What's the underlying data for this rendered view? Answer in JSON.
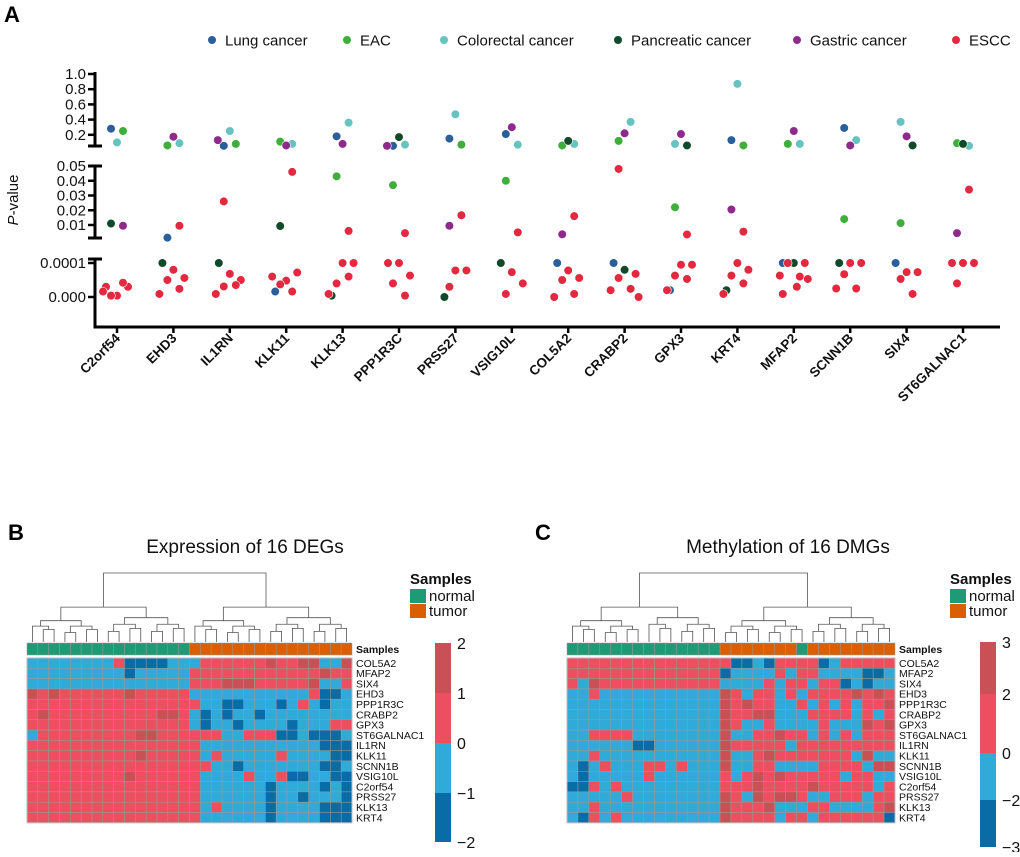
{
  "panels": {
    "a": "A",
    "b": "B",
    "c": "C"
  },
  "chart_data": [
    {
      "type": "scatter",
      "ylabel": "P-value",
      "y_axis": "broken",
      "y_segments": [
        {
          "range": [
            0.05,
            1.0
          ],
          "ticks": [
            "1.0",
            "0.8",
            "0.6",
            "0.4",
            "0.2"
          ],
          "tick_values": [
            1.0,
            0.8,
            0.6,
            0.4,
            0.2
          ]
        },
        {
          "range": [
            0.001,
            0.05
          ],
          "ticks": [
            "0.05",
            "0.04",
            "0.03",
            "0.02",
            "0.01"
          ],
          "tick_values": [
            0.05,
            0.04,
            0.03,
            0.02,
            0.01
          ]
        },
        {
          "range": [
            -9e-05,
            0.0001
          ],
          "ticks": [
            "0.0001",
            "0.000"
          ],
          "tick_values": [
            0.0001,
            0.0
          ]
        }
      ],
      "legend_placement": "top",
      "categories": [
        "C2orf54",
        "EHD3",
        "IL1RN",
        "KLK11",
        "KLK13",
        "PPP1R3C",
        "PRSS27",
        "VSIG10L",
        "COL5A2",
        "CRABP2",
        "GPX3",
        "KRT4",
        "MFAP2",
        "SCNN1B",
        "SIX4",
        "ST6GALNAC1"
      ],
      "series": [
        {
          "name": "Lung cancer",
          "color": "#2b5f9c",
          "values": [
            0.28,
            0.0014,
            0.055,
            1.6e-05,
            0.18,
            0.055,
            0.15,
            0.21,
            0.0001,
            0.0001,
            2e-05,
            0.13,
            0.0001,
            0.29,
            0.0001,
            null
          ]
        },
        {
          "name": "EAC",
          "color": "#3fae3a",
          "values": [
            0.25,
            0.06,
            0.08,
            0.11,
            0.043,
            0.037,
            0.07,
            0.04,
            0.06,
            0.12,
            0.022,
            0.06,
            0.08,
            0.014,
            0.0113,
            0.09
          ]
        },
        {
          "name": "Colorectal cancer",
          "color": "#66c3c0",
          "values": [
            0.1,
            0.09,
            0.25,
            0.08,
            0.36,
            0.07,
            0.47,
            0.07,
            0.08,
            0.37,
            0.08,
            0.87,
            0.08,
            0.13,
            0.37,
            0.055
          ]
        },
        {
          "name": "Pancreatic cancer",
          "color": "#114a2b",
          "values": [
            0.011,
            0.0001,
            0.0001,
            0.0093,
            4e-06,
            0.17,
            0.0,
            0.0001,
            0.12,
            8e-05,
            0.06,
            2e-05,
            0.0001,
            0.0001,
            0.06,
            0.08
          ]
        },
        {
          "name": "Gastric cancer",
          "color": "#8f2a8d",
          "values": [
            0.0095,
            0.175,
            0.13,
            0.06,
            0.08,
            0.055,
            0.0095,
            0.3,
            0.0037,
            0.22,
            0.21,
            0.0205,
            0.25,
            0.06,
            0.18,
            0.0045
          ]
        },
        {
          "name": "ESCC",
          "color": "#e4283f",
          "values": [
            [
              3e-05,
              4e-06,
              3e-05,
              4e-06,
              4.2e-05,
              1.6e-05
            ],
            [
              0.0095,
              8e-05,
              5.6e-05,
              5e-05,
              2.4e-05,
              9e-06
            ],
            [
              0.026,
              6.8e-05,
              5e-05,
              3.1e-05,
              3.5e-05,
              9e-06
            ],
            [
              0.046,
              4.8e-05,
              7.2e-05,
              3.7e-05,
              1.6e-05,
              6e-05
            ],
            [
              0.006,
              0.0001,
              0.0001,
              4e-05,
              6e-05,
              9e-06
            ],
            [
              0.0045,
              0.0001,
              0.0001,
              6.3e-05,
              4e-05,
              4e-06
            ],
            [
              0.0166,
              7.8e-05,
              7.8e-05,
              3e-05
            ],
            [
              0.005,
              7.3e-05,
              4e-05,
              9e-06
            ],
            [
              0.016,
              7.8e-05,
              5.6e-05,
              5e-05,
              9e-06,
              0.0
            ],
            [
              0.048,
              6.8e-05,
              5.6e-05,
              2.4e-05,
              2e-05,
              0.0
            ],
            [
              0.0036,
              9.5e-05,
              9.5e-05,
              6.3e-05,
              5.3e-05,
              2e-05
            ],
            [
              0.0055,
              0.0001,
              8e-05,
              6.3e-05,
              4e-05,
              9e-06
            ],
            [
              0.0001,
              0.0001,
              6e-05,
              6.3e-05,
              5.3e-05,
              3e-05,
              9e-06
            ],
            [
              0.0001,
              0.0001,
              6.7e-05,
              2.5e-05,
              2.5e-05
            ],
            [
              7.3e-05,
              7.3e-05,
              5.3e-05,
              9e-06
            ],
            [
              0.034,
              0.0001,
              0.0001,
              0.0001,
              4e-05
            ]
          ]
        }
      ]
    },
    {
      "type": "heatmap",
      "title": "Expression of 16 DEGs",
      "annotation_label": "Samples",
      "legend_title": "Samples",
      "sample_groups": [
        {
          "name": "normal",
          "code": "N",
          "color": "#1f9a74"
        },
        {
          "name": "tumor",
          "code": "T",
          "color": "#d95f02"
        }
      ],
      "samples": "NNNNNNNNNNNNNNNTTTTTTTTTTTTTTT",
      "highlight_color": "#e0333f",
      "highlighted_genes": [
        "COL5A2",
        "MFAP2",
        "SIX4"
      ],
      "colorbar": {
        "ticks": [
          "2",
          "1",
          "0",
          "−1",
          "−2"
        ],
        "tick_values": [
          2,
          1,
          0,
          -1,
          -2
        ]
      },
      "levels": [
        {
          "code": "H",
          "range": [
            1,
            2
          ],
          "color": "#c95155"
        },
        {
          "code": "R",
          "range": [
            0,
            1
          ],
          "color": "#ee4f60"
        },
        {
          "code": "B",
          "range": [
            -1,
            0
          ],
          "color": "#30aad9"
        },
        {
          "code": "D",
          "range": [
            -2,
            -1
          ],
          "color": "#0a6ca6"
        }
      ],
      "rows": [
        {
          "gene": "COL5A2",
          "cells": "BBBBBBBBRDDDDBBBRRRRRRHRRHHBBH"
        },
        {
          "gene": "MFAP2",
          "cells": "BBBBBBBBBDBBBBBRRRRRRRRRRRRHRR"
        },
        {
          "gene": "SIX4",
          "cells": "BBBBBBBBBBBBBBBRRRHHHRRRRRHBBR"
        },
        {
          "gene": "EHD3",
          "cells": "HRHRRRRRRHRRRRRBBBBBBBBBBBRDDB"
        },
        {
          "gene": "PPP1R3C",
          "cells": "RRRRRRRRRRRRRRRRBBDDBBBDBRBDBB"
        },
        {
          "gene": "CRABP2",
          "cells": "RHRRRRRRRRRRHHRBDBDBBDBBBBBBBB"
        },
        {
          "gene": "GPX3",
          "cells": "RRRRRRRRRRRRRRRBDBBDBBBBDBBBRR"
        },
        {
          "gene": "ST6GALNAC1",
          "cells": "BRRRRRRRRRHHRRRRRRBBRRRDDBDDDB"
        },
        {
          "gene": "IL1RN",
          "cells": "RRRRRRRRRRRRRRRRBBBBBBBBBBBDDD"
        },
        {
          "gene": "KLK11",
          "cells": "RRRRRRRRRRHRRRRRBRBBBBBRBBBBDD"
        },
        {
          "gene": "SCNN1B",
          "cells": "RRRRRRRRRRRRRRRRRBBDBBBBBBBDDB"
        },
        {
          "gene": "VSIG10L",
          "cells": "RRRRRRRRRHRRRRRRBBBBRBBRDDBBDD"
        },
        {
          "gene": "C2orf54",
          "cells": "RRRRRRRRRRRRRRRRBBBBBBDBBBBDBD"
        },
        {
          "gene": "PRSS27",
          "cells": "RRRRRRRRRRRRRRRRBBBBBBDBBDBBBD"
        },
        {
          "gene": "KLK13",
          "cells": "RRRRRRRRRRRRRRRRBRBBBBDBBBBDDD"
        },
        {
          "gene": "KRT4",
          "cells": "RRRRRRRRRRRRRRRRBBBBBBDBBBBDDD"
        }
      ]
    },
    {
      "type": "heatmap",
      "title": "Methylation of 16 DMGs",
      "annotation_label": "Samples",
      "legend_title": "Samples",
      "sample_groups": [
        {
          "name": "normal",
          "code": "N",
          "color": "#1f9a74"
        },
        {
          "name": "tumor",
          "code": "T",
          "color": "#d95f02"
        }
      ],
      "samples": "NNNNNNNNNNNNNNTTTTTTTNTTTTTTTT",
      "highlight_color": "#e0333f",
      "highlighted_genes": [
        "COL5A2",
        "MFAP2",
        "SIX4"
      ],
      "colorbar": {
        "ticks": [
          "3",
          "2",
          "0",
          "−2",
          "−3"
        ],
        "tick_values": [
          3,
          2,
          0,
          -2,
          -3
        ]
      },
      "levels": [
        {
          "code": "H",
          "range": [
            2,
            3
          ],
          "color": "#c95155"
        },
        {
          "code": "R",
          "range": [
            0,
            2
          ],
          "color": "#ee4f60"
        },
        {
          "code": "B",
          "range": [
            -2,
            0
          ],
          "color": "#30aad9"
        },
        {
          "code": "D",
          "range": [
            -3,
            -2
          ],
          "color": "#0a6ca6"
        }
      ],
      "rows": [
        {
          "gene": "COL5A2",
          "cells": "RRRRRRRRRRRRRRRDDBDRRRRDBRRRRR"
        },
        {
          "gene": "MFAP2",
          "cells": "RRRRRRRRRRRRRRDBBBBRBRRBBBBDDB"
        },
        {
          "gene": "SIX4",
          "cells": "RBHRRRRRRRRRRRBBBBRBRRBRRDBDBB"
        },
        {
          "gene": "EHD3",
          "cells": "BBRBBBBBBBBBBBHRBRRBRBRRRRHRHR"
        },
        {
          "gene": "PPP1R3C",
          "cells": "BBBBBBBBBBBBBBHRHRRBBRBRBRBRRH"
        },
        {
          "gene": "CRABP2",
          "cells": "BBBBBBBBBBBBBBHRRHHBBBRRRRBRBR"
        },
        {
          "gene": "GPX3",
          "cells": "BBBBBBBBBBBBBBHRBBRBBBBRBBBHRH"
        },
        {
          "gene": "ST6GALNAC1",
          "cells": "BBRRRRBBBBBBBBHBBRRHRRBRBRBRRR"
        },
        {
          "gene": "IL1RN",
          "cells": "BBBBBBDDBBBBBBHRRRRRBRRRRRRRRR"
        },
        {
          "gene": "KLK11",
          "cells": "BBRBBBBBBBBBBBHBBRHRRRRRRRBHBB"
        },
        {
          "gene": "SCNN1B",
          "cells": "BDBRBBBRRBRBBBHBBRRBBBBRRRRBHH"
        },
        {
          "gene": "VSIG10L",
          "cells": "BDBBBBBRBBBBBBRBRHRHRRRRRBRRBB"
        },
        {
          "gene": "C2orf54",
          "cells": "DDRBRBBBBBBBBBRRRHRRRRHRRRRRBR"
        },
        {
          "gene": "PRSS27",
          "cells": "BBBBBRBBBBBBBBHRBHRHHRBBRRRBRR"
        },
        {
          "gene": "KLK13",
          "cells": "BBRBBBBBBBBBBBHRRRHBBBRRBBBBRH"
        },
        {
          "gene": "KRT4",
          "cells": "BDRBRBBBBBBBBBHRRRRBRRBRRRRRRD"
        }
      ]
    }
  ]
}
